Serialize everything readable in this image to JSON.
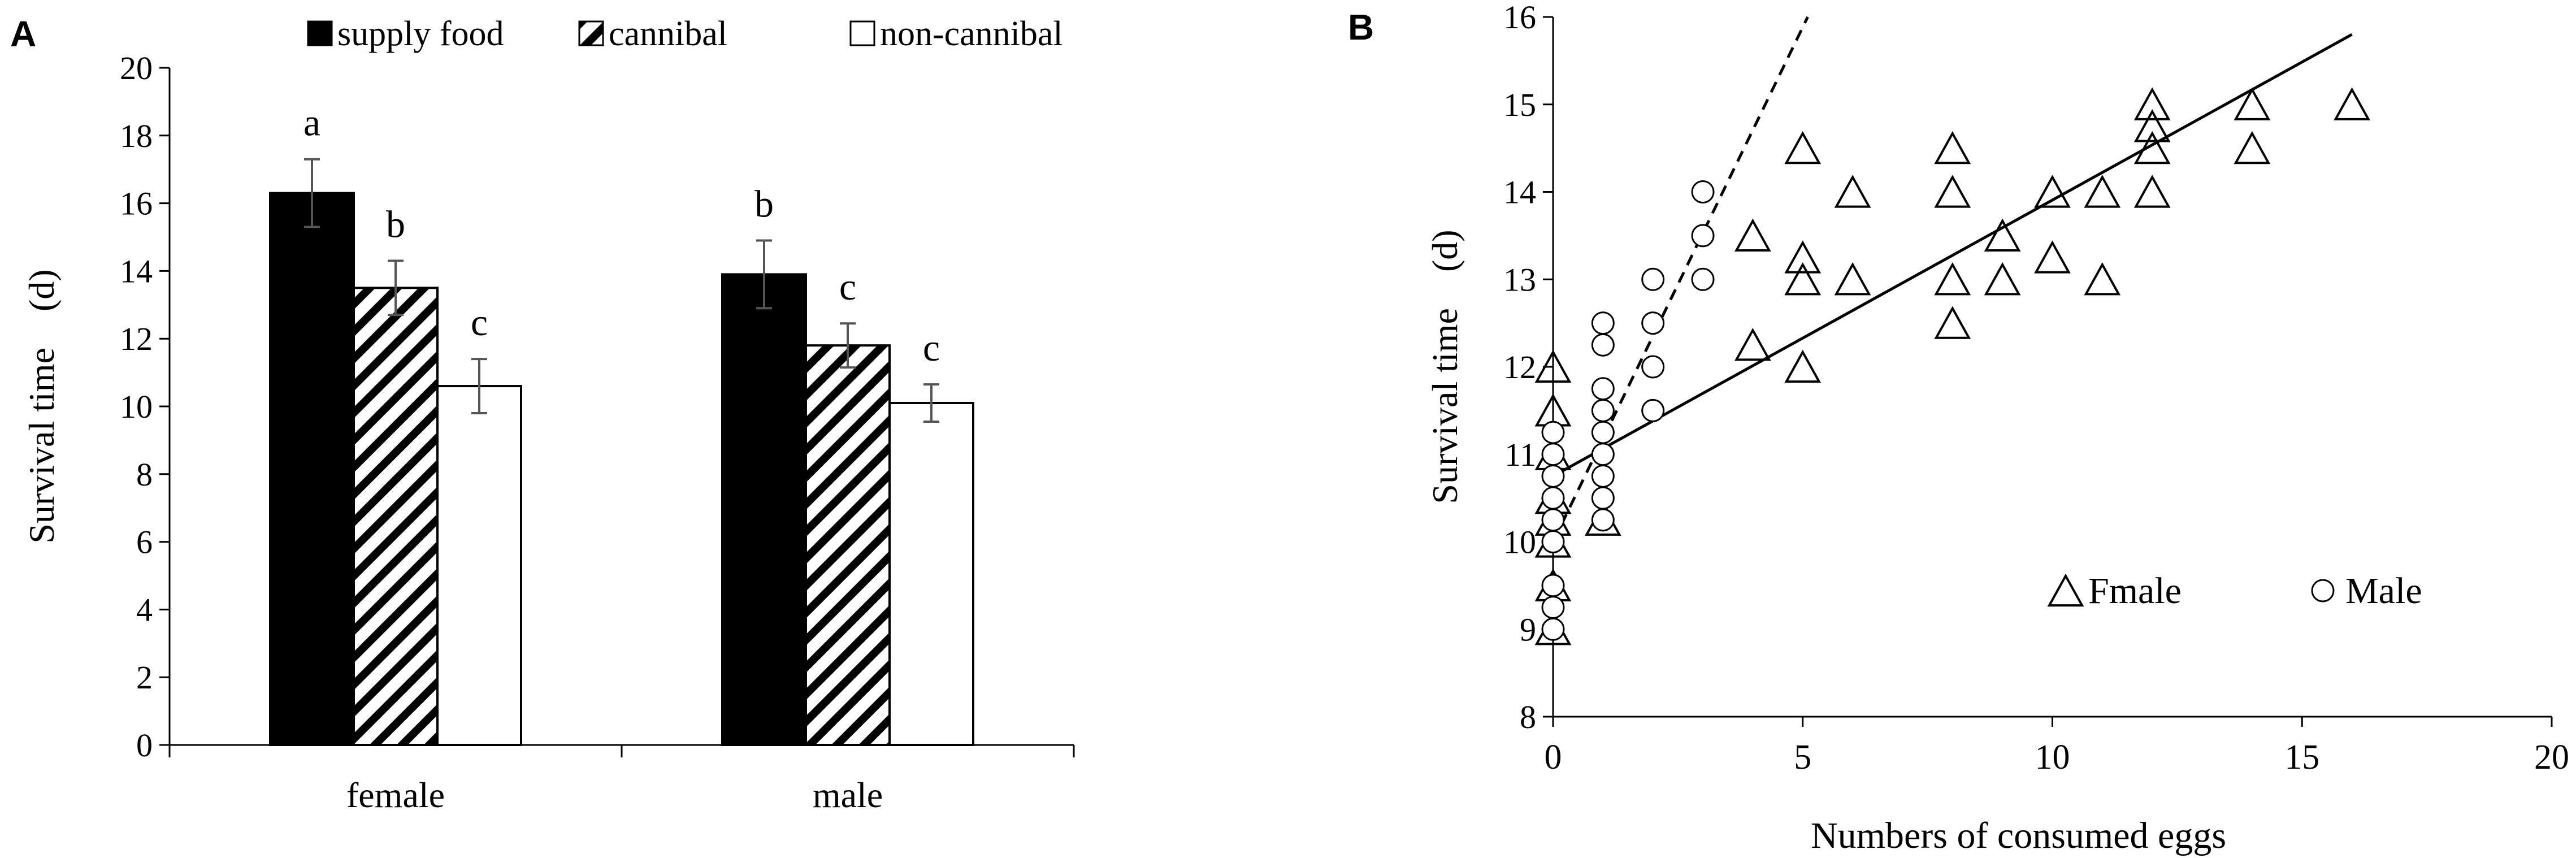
{
  "chart_data": [
    {
      "id": "A",
      "panel_label": "A",
      "type": "bar",
      "title": "",
      "xlabel": "",
      "ylabel": "Survival time　(d)",
      "ylim": [
        0,
        20
      ],
      "yticks": [
        0,
        2,
        4,
        6,
        8,
        10,
        12,
        14,
        16,
        18,
        20
      ],
      "ytick_labels": [
        "0",
        "2",
        "4",
        "6",
        "8",
        "10",
        "12",
        "14",
        "16",
        "18",
        "20"
      ],
      "categories": [
        "female",
        "male"
      ],
      "legend_position": "top",
      "series": [
        {
          "name": "supply food",
          "fill": "solid-black",
          "values": [
            16.3,
            13.9
          ],
          "errors": [
            1.0,
            1.0
          ],
          "labels": [
            "a",
            "b"
          ]
        },
        {
          "name": "cannibal",
          "fill": "diagonal-hatch",
          "values": [
            13.5,
            11.8
          ],
          "errors": [
            0.8,
            0.65
          ],
          "labels": [
            "b",
            "c"
          ]
        },
        {
          "name": "non-cannibal",
          "fill": "white",
          "values": [
            10.6,
            10.1
          ],
          "errors": [
            0.8,
            0.55
          ],
          "labels": [
            "c",
            "c"
          ]
        }
      ]
    },
    {
      "id": "B",
      "panel_label": "B",
      "type": "scatter",
      "title": "",
      "xlabel": "Numbers of consumed eggs",
      "ylabel": "Survival time　(d)",
      "xlim": [
        0,
        20
      ],
      "ylim": [
        8,
        16
      ],
      "xticks": [
        0,
        5,
        10,
        15,
        20
      ],
      "xtick_labels": [
        "0",
        "5",
        "10",
        "15",
        "20"
      ],
      "yticks": [
        8,
        9,
        10,
        11,
        12,
        13,
        14,
        15,
        16
      ],
      "ytick_labels": [
        "8",
        "9",
        "10",
        "11",
        "12",
        "13",
        "14",
        "15",
        "16"
      ],
      "legend_position": "bottom-right",
      "series": [
        {
          "name": "Fmale",
          "marker": "triangle",
          "trendline": {
            "style": "solid",
            "x": [
              0,
              16
            ],
            "y": [
              10.75,
              15.8
            ]
          },
          "points": [
            [
              0,
              9.0
            ],
            [
              0,
              9.5
            ],
            [
              0,
              10.0
            ],
            [
              0,
              10.25
            ],
            [
              0,
              10.5
            ],
            [
              0,
              11.0
            ],
            [
              0,
              11.5
            ],
            [
              0,
              12.0
            ],
            [
              1,
              10.25
            ],
            [
              4,
              12.25
            ],
            [
              4,
              13.5
            ],
            [
              5,
              12.0
            ],
            [
              5,
              13.0
            ],
            [
              5,
              13.25
            ],
            [
              5,
              14.5
            ],
            [
              6,
              13.0
            ],
            [
              6,
              14.0
            ],
            [
              8,
              12.5
            ],
            [
              8,
              13.0
            ],
            [
              8,
              14.0
            ],
            [
              8,
              14.5
            ],
            [
              9,
              13.0
            ],
            [
              9,
              13.5
            ],
            [
              10,
              13.25
            ],
            [
              10,
              14.0
            ],
            [
              11,
              13.0
            ],
            [
              11,
              14.0
            ],
            [
              12,
              14.0
            ],
            [
              12,
              14.5
            ],
            [
              12,
              14.75
            ],
            [
              12,
              15.0
            ],
            [
              14,
              14.5
            ],
            [
              14,
              15.0
            ],
            [
              16,
              15.0
            ]
          ]
        },
        {
          "name": "Male",
          "marker": "circle",
          "trendline": {
            "style": "dashed",
            "x": [
              0,
              5.1
            ],
            "y": [
              10.0,
              16.0
            ]
          },
          "points": [
            [
              0,
              9.0
            ],
            [
              0,
              9.25
            ],
            [
              0,
              9.5
            ],
            [
              0,
              10.0
            ],
            [
              0,
              10.25
            ],
            [
              0,
              10.5
            ],
            [
              0,
              10.75
            ],
            [
              0,
              11.0
            ],
            [
              0,
              11.25
            ],
            [
              1,
              10.25
            ],
            [
              1,
              10.5
            ],
            [
              1,
              10.75
            ],
            [
              1,
              11.0
            ],
            [
              1,
              11.25
            ],
            [
              1,
              11.5
            ],
            [
              1,
              11.75
            ],
            [
              1,
              12.25
            ],
            [
              1,
              12.5
            ],
            [
              2,
              11.5
            ],
            [
              2,
              12.0
            ],
            [
              2,
              12.5
            ],
            [
              2,
              13.0
            ],
            [
              3,
              13.0
            ],
            [
              3,
              13.5
            ],
            [
              3,
              14.0
            ]
          ]
        }
      ]
    }
  ]
}
